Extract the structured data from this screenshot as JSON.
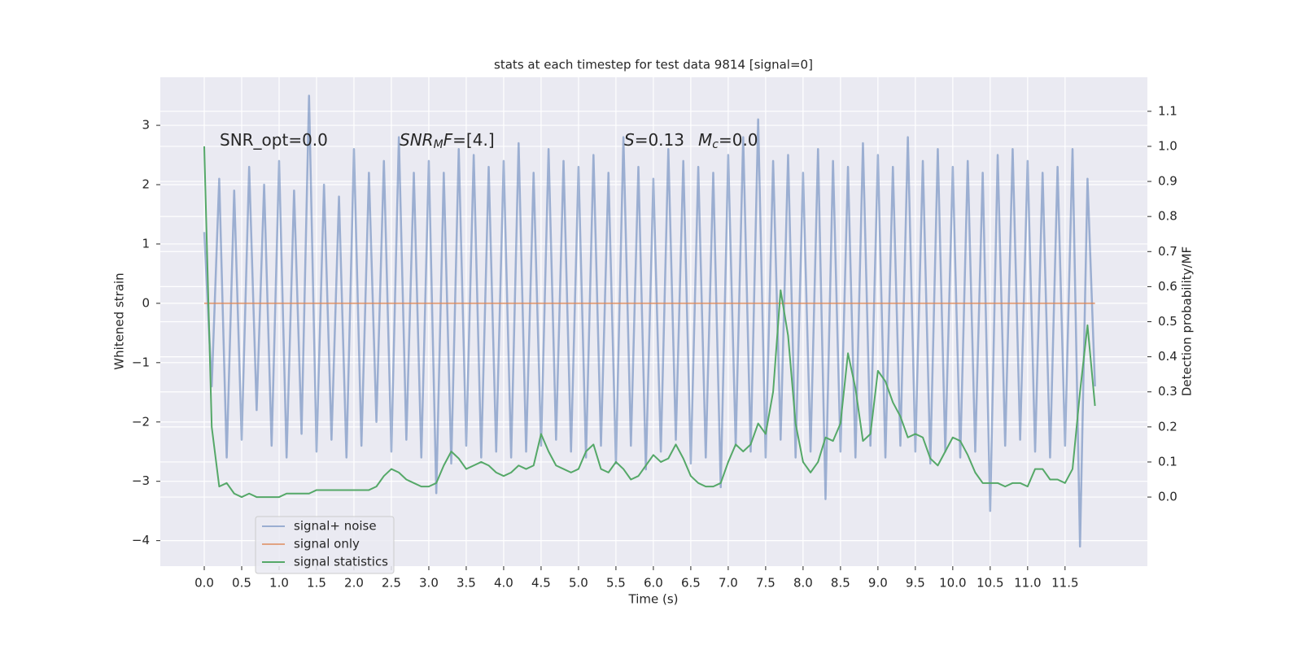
{
  "chart_data": {
    "type": "line",
    "title": "stats at each timestep for test data 9814 [signal=0]",
    "x_label": "Time (s)",
    "y_label": "Whitened strain",
    "y2_label": "Detection probability/MF",
    "annotations": [
      [
        {
          "text": "SNR_opt=0.0"
        }
      ],
      [
        {
          "text": "SNR",
          "italic": true
        },
        {
          "text": "M",
          "italic": true,
          "sub": true
        },
        {
          "text": "F",
          "italic": true
        },
        {
          "text": "=[4.]"
        }
      ],
      [
        {
          "text": "S",
          "italic": true
        },
        {
          "text": "=0.13"
        }
      ],
      [
        {
          "text": "M",
          "italic": true
        },
        {
          "text": "c",
          "italic": true,
          "sub": true
        },
        {
          "text": "=0.0"
        }
      ]
    ],
    "xlim": [
      -0.587,
      12.6
    ],
    "ylim": [
      -4.43,
      3.81
    ],
    "y2lim": [
      -0.197,
      1.197
    ],
    "xticks": [
      {
        "value": 0,
        "label": "0.0"
      },
      0.5,
      {
        "value": 1,
        "label": "1.0"
      },
      1.5,
      {
        "value": 2,
        "label": "2.0"
      },
      2.5,
      {
        "value": 3,
        "label": "3.0"
      },
      3.5,
      {
        "value": 4,
        "label": "4.0"
      },
      4.5,
      {
        "value": 5,
        "label": "5.0"
      },
      5.5,
      {
        "value": 6,
        "label": "6.0"
      },
      6.5,
      {
        "value": 7,
        "label": "7.0"
      },
      7.5,
      {
        "value": 8,
        "label": "8.0"
      },
      8.5,
      {
        "value": 9,
        "label": "9.0"
      },
      9.5,
      {
        "value": 10,
        "label": "10.0"
      },
      10.5,
      {
        "value": 11,
        "label": "11.0"
      },
      11.5
    ],
    "yticks": [
      {
        "value": -4,
        "label": "−4"
      },
      {
        "value": -3,
        "label": "−3"
      },
      {
        "value": -2,
        "label": "−2"
      },
      {
        "value": -1,
        "label": "−1"
      },
      0,
      1,
      2,
      3
    ],
    "y2ticks": [
      {
        "value": 0,
        "label": "0.0"
      },
      0.1,
      0.2,
      0.3,
      0.4,
      0.5,
      0.6,
      0.7,
      0.8,
      0.9,
      {
        "value": 1,
        "label": "1.0"
      },
      1.1
    ],
    "grid": true,
    "legend": "lower left",
    "x": [
      0,
      0.1,
      0.2,
      0.3,
      0.4,
      0.5,
      0.6,
      0.7,
      0.8,
      0.9,
      1,
      1.1,
      1.2,
      1.3,
      1.4,
      1.5,
      1.6,
      1.7,
      1.8,
      1.9,
      2,
      2.1,
      2.2,
      2.3,
      2.4,
      2.5,
      2.6,
      2.7,
      2.8,
      2.9,
      3,
      3.1,
      3.2,
      3.3,
      3.4,
      3.5,
      3.6,
      3.7,
      3.8,
      3.9,
      4,
      4.1,
      4.2,
      4.3,
      4.4,
      4.5,
      4.6,
      4.7,
      4.8,
      4.9,
      5,
      5.1,
      5.2,
      5.3,
      5.4,
      5.5,
      5.6,
      5.7,
      5.8,
      5.9,
      6,
      6.1,
      6.2,
      6.3,
      6.4,
      6.5,
      6.6,
      6.7,
      6.8,
      6.9,
      7,
      7.1,
      7.2,
      7.3,
      7.4,
      7.5,
      7.6,
      7.7,
      7.8,
      7.9,
      8,
      8.1,
      8.2,
      8.3,
      8.4,
      8.5,
      8.6,
      8.7,
      8.8,
      8.9,
      9,
      9.1,
      9.2,
      9.3,
      9.4,
      9.5,
      9.6,
      9.7,
      9.8,
      9.9,
      10,
      10.1,
      10.2,
      10.3,
      10.4,
      10.5,
      10.6,
      10.7,
      10.8,
      10.9,
      11,
      11.1,
      11.2,
      11.3,
      11.4,
      11.5,
      11.6,
      11.7,
      11.8,
      11.9
    ],
    "series": [
      {
        "name": "signal+ noise",
        "color": "#4c72b0",
        "values": [
          1.2,
          -1.4,
          2.1,
          -2.6,
          1.9,
          -2.3,
          2.3,
          -1.8,
          2.0,
          -2.4,
          2.4,
          -2.6,
          1.9,
          -2.2,
          3.5,
          -2.5,
          2.0,
          -2.3,
          1.8,
          -2.6,
          2.6,
          -2.4,
          2.2,
          -2.0,
          2.4,
          -2.5,
          2.8,
          -2.3,
          2.2,
          -2.6,
          2.4,
          -3.2,
          2.2,
          -2.7,
          2.6,
          -2.4,
          2.5,
          -2.6,
          2.3,
          -2.5,
          2.4,
          -2.6,
          2.7,
          -2.5,
          2.2,
          -2.4,
          2.6,
          -2.3,
          2.4,
          -2.5,
          2.3,
          -2.6,
          2.5,
          -2.4,
          2.2,
          -2.7,
          2.8,
          -2.4,
          2.3,
          -2.8,
          2.1,
          -2.5,
          2.6,
          -2.3,
          2.4,
          -2.7,
          2.3,
          -2.6,
          2.2,
          -3.1,
          2.5,
          -2.4,
          2.8,
          -2.5,
          3.1,
          -2.6,
          2.4,
          -2.3,
          2.5,
          -2.6,
          2.2,
          -2.5,
          2.6,
          -3.3,
          2.4,
          -2.5,
          2.3,
          -2.6,
          2.7,
          -2.4,
          2.5,
          -2.6,
          2.3,
          -2.4,
          2.8,
          -2.5,
          2.4,
          -2.7,
          2.6,
          -2.5,
          2.3,
          -2.6,
          2.4,
          -2.5,
          2.2,
          -3.5,
          2.5,
          -2.4,
          2.6,
          -2.3,
          2.4,
          -2.5,
          2.2,
          -2.6,
          2.3,
          -2.4,
          2.6,
          -4.1,
          2.1,
          -1.4
        ]
      },
      {
        "name": "signal only",
        "color": "#dd8452",
        "values": [
          0,
          0,
          0,
          0,
          0,
          0,
          0,
          0,
          0,
          0,
          0,
          0,
          0,
          0,
          0,
          0,
          0,
          0,
          0,
          0,
          0,
          0,
          0,
          0,
          0,
          0,
          0,
          0,
          0,
          0,
          0,
          0,
          0,
          0,
          0,
          0,
          0,
          0,
          0,
          0,
          0,
          0,
          0,
          0,
          0,
          0,
          0,
          0,
          0,
          0,
          0,
          0,
          0,
          0,
          0,
          0,
          0,
          0,
          0,
          0,
          0,
          0,
          0,
          0,
          0,
          0,
          0,
          0,
          0,
          0,
          0,
          0,
          0,
          0,
          0,
          0,
          0,
          0,
          0,
          0,
          0,
          0,
          0,
          0,
          0,
          0,
          0,
          0,
          0,
          0,
          0,
          0,
          0,
          0,
          0,
          0,
          0,
          0,
          0,
          0,
          0,
          0,
          0,
          0,
          0,
          0,
          0,
          0,
          0,
          0,
          0,
          0,
          0,
          0,
          0,
          0,
          0,
          0,
          0,
          0
        ]
      },
      {
        "name": "signal statistics",
        "color": "#55a868",
        "axis": "y2",
        "values": [
          1.0,
          0.2,
          0.03,
          0.04,
          0.01,
          0,
          0.01,
          0,
          0,
          0,
          0,
          0.01,
          0.01,
          0.01,
          0.01,
          0.02,
          0.02,
          0.02,
          0.02,
          0.02,
          0.02,
          0.02,
          0.02,
          0.03,
          0.06,
          0.08,
          0.07,
          0.05,
          0.04,
          0.03,
          0.03,
          0.04,
          0.09,
          0.13,
          0.11,
          0.08,
          0.09,
          0.1,
          0.09,
          0.07,
          0.06,
          0.07,
          0.09,
          0.08,
          0.09,
          0.18,
          0.13,
          0.09,
          0.08,
          0.07,
          0.08,
          0.13,
          0.15,
          0.08,
          0.07,
          0.1,
          0.08,
          0.05,
          0.06,
          0.09,
          0.12,
          0.1,
          0.11,
          0.15,
          0.11,
          0.06,
          0.04,
          0.03,
          0.03,
          0.04,
          0.1,
          0.15,
          0.13,
          0.15,
          0.21,
          0.18,
          0.3,
          0.59,
          0.46,
          0.21,
          0.1,
          0.07,
          0.1,
          0.17,
          0.16,
          0.21,
          0.41,
          0.31,
          0.16,
          0.18,
          0.36,
          0.33,
          0.27,
          0.23,
          0.17,
          0.18,
          0.17,
          0.11,
          0.09,
          0.13,
          0.17,
          0.16,
          0.12,
          0.07,
          0.04,
          0.04,
          0.04,
          0.03,
          0.04,
          0.04,
          0.03,
          0.08,
          0.08,
          0.05,
          0.05,
          0.04,
          0.08,
          0.3,
          0.49,
          0.26
        ]
      }
    ]
  }
}
